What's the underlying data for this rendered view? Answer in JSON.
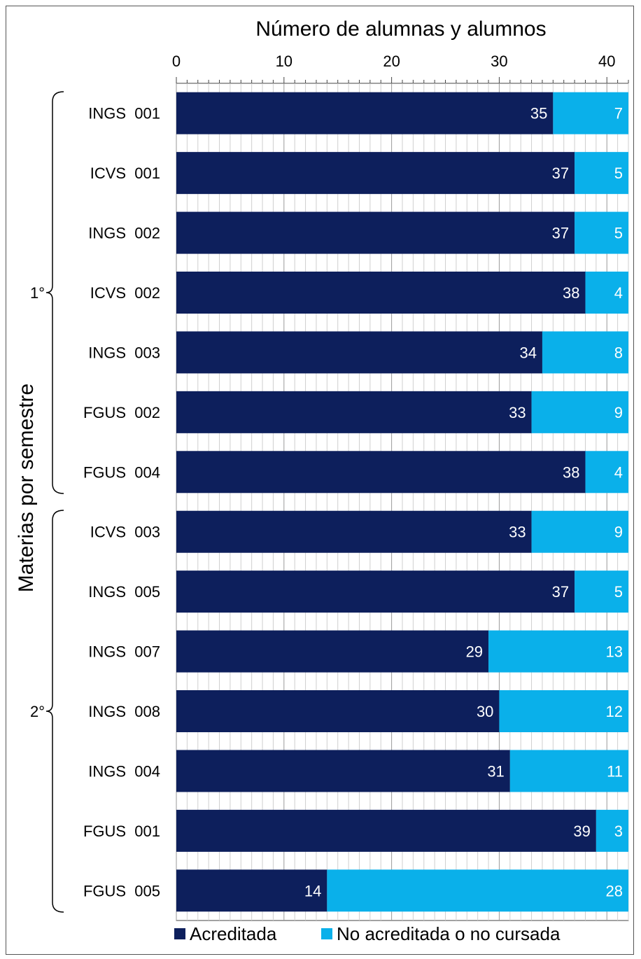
{
  "chart_data": {
    "type": "bar",
    "orientation": "horizontal",
    "stacked": true,
    "title": "Número de alumnas y alumnos",
    "ylabel": "Materias por semestre",
    "xlim": [
      0,
      42
    ],
    "x_ticks": [
      0,
      10,
      20,
      30,
      40
    ],
    "categories": [
      "INGS  001",
      "ICVS  001",
      "INGS  002",
      "ICVS  002",
      "INGS  003",
      "FGUS  002",
      "FGUS  004",
      "ICVS  003",
      "INGS  005",
      "INGS  007",
      "INGS  008",
      "INGS  004",
      "FGUS  001",
      "FGUS  005"
    ],
    "series": [
      {
        "name": "Acreditada",
        "color": "#0d1f5c",
        "values": [
          35,
          37,
          37,
          38,
          34,
          33,
          38,
          33,
          37,
          29,
          30,
          31,
          39,
          14
        ]
      },
      {
        "name": "No acreditada o no cursada",
        "color": "#0ab0ea",
        "values": [
          7,
          5,
          5,
          4,
          8,
          9,
          4,
          9,
          5,
          13,
          12,
          11,
          3,
          28
        ]
      }
    ],
    "groups": [
      {
        "label": "1°",
        "count": 7
      },
      {
        "label": "2°",
        "count": 7
      }
    ],
    "legend_position": "bottom",
    "grid": "vertical minor ticks"
  }
}
